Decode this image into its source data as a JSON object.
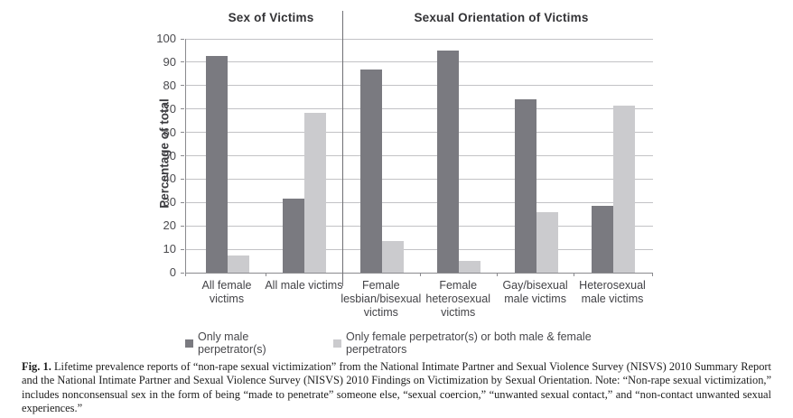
{
  "chart_data": {
    "type": "bar",
    "ylabel": "Percentage of total",
    "ylim": [
      0,
      100
    ],
    "yticks": [
      0,
      10,
      20,
      30,
      40,
      50,
      60,
      70,
      80,
      90,
      100
    ],
    "grid": "horizontal",
    "legend_position": "bottom-center",
    "sections": [
      {
        "label": "Sex of Victims",
        "span": 2
      },
      {
        "label": "Sexual Orientation of Victims",
        "span": 4
      }
    ],
    "categories": [
      [
        "All female",
        "victims"
      ],
      [
        "All male victims"
      ],
      [
        "Female",
        "lesbian/bisexual",
        "victims"
      ],
      [
        "Female",
        "heterosexual",
        "victims"
      ],
      [
        "Gay/bisexual",
        "male victims"
      ],
      [
        "Heterosexual",
        "male victims"
      ]
    ],
    "series": [
      {
        "name": "Only male perpetrator(s)",
        "color": "#7a7a80",
        "values": [
          92.5,
          31.5,
          87,
          95,
          74,
          28.5
        ]
      },
      {
        "name": "Only female perpetrator(s) or both male & female perpetrators",
        "color": "#cbcbce",
        "values": [
          7.5,
          68.5,
          13.5,
          5,
          26,
          71.5
        ]
      }
    ]
  },
  "caption": {
    "fig_label": "Fig. 1.",
    "text": " Lifetime prevalence reports of “non-rape sexual victimization” from the National Intimate Partner and Sexual Violence Survey (NISVS) 2010 Summary Report and the National Intimate Partner and Sexual Violence Survey (NISVS) 2010 Findings on Victimization by Sexual Orientation. Note: “Non-rape sexual victimization,” includes nonconsensual sex in the form of being “made to penetrate” someone else, “sexual coercion,” “unwanted sexual contact,” and “non-contact unwanted sexual experiences.”"
  }
}
